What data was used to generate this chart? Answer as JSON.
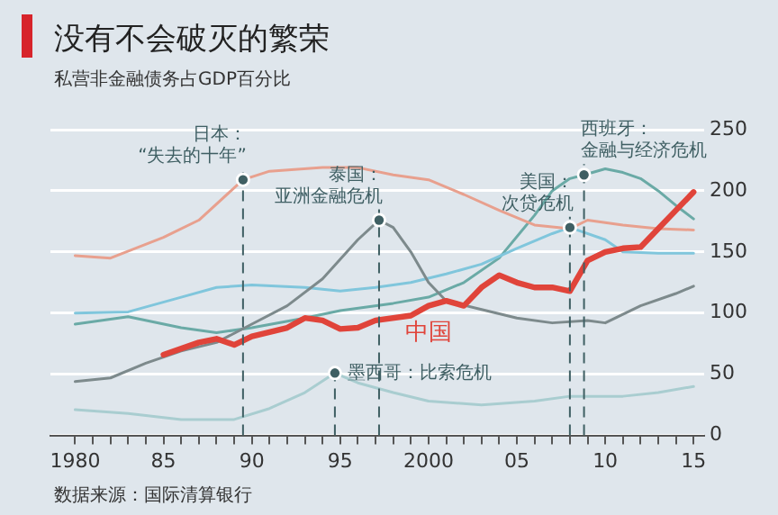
{
  "chart_data": {
    "type": "line",
    "title": "没有不会破灭的繁荣",
    "subtitle": "私营非金融债务占GDP百分比",
    "ref_lines": [
      {
        "axis": "x",
        "value": 1989.5,
        "line_style": "dashed"
      },
      {
        "axis": "x",
        "value": 1994.7,
        "line_style": "dashed"
      },
      {
        "axis": "x",
        "value": 1997.2,
        "line_style": "dashed"
      },
      {
        "axis": "x",
        "value": 2008,
        "line_style": "dashed"
      },
      {
        "axis": "x",
        "value": 2008.8,
        "line_style": "dashed"
      }
    ],
    "annotations": [
      {
        "text": "日本：“失去的十年”",
        "x": 1989.5,
        "y": 209
      },
      {
        "text": "墨西哥：比索危机",
        "x": 1994.7,
        "y": 51
      },
      {
        "text": "泰国：亚洲金融危机",
        "x": 1997.2,
        "y": 176
      },
      {
        "text": "美国：次贷危机",
        "x": 2008,
        "y": 170
      },
      {
        "text": "西班牙：金融与经济危机",
        "x": 2008.8,
        "y": 213
      },
      "数据来源：国际清算银行"
    ],
    "series": [
      {
        "color": "#e8a08e",
        "x": [
          1980,
          1982,
          1985,
          1987,
          1989.5,
          1991,
          1994,
          1996,
          1998,
          2000,
          2002,
          2004,
          2006,
          2008,
          2009,
          2011,
          2013,
          2015
        ],
        "values": [
          147,
          145,
          162,
          176,
          209,
          216,
          219,
          219,
          213,
          209,
          197,
          184,
          172,
          169,
          176,
          172,
          169,
          168
        ]
      },
      {
        "color": "#7d8a8c",
        "x": [
          1980,
          1982,
          1984,
          1986,
          1988,
          1990,
          1992,
          1994,
          1996,
          1997.2,
          1998,
          1999,
          2000,
          2001,
          2003,
          2005,
          2007,
          2009,
          2010,
          2012,
          2014,
          2015
        ],
        "values": [
          44,
          47,
          59,
          69,
          76,
          91,
          106,
          128,
          160,
          176,
          170,
          150,
          125,
          110,
          103,
          96,
          92,
          94,
          92,
          106,
          116,
          122
        ]
      },
      {
        "color": "#80c6dc",
        "x": [
          1980,
          1983,
          1986,
          1988,
          1990,
          1993,
          1995,
          1997,
          1999,
          2001,
          2003,
          2005,
          2007,
          2008,
          2010,
          2011,
          2013,
          2015
        ],
        "values": [
          100,
          101,
          113,
          121,
          123,
          121,
          118,
          121,
          125,
          132,
          140,
          153,
          165,
          170,
          160,
          150,
          149,
          149
        ]
      },
      {
        "color": "#6aaaa6",
        "x": [
          1980,
          1983,
          1986,
          1988,
          1990,
          1993,
          1995,
          1998,
          2000,
          2002,
          2004,
          2006,
          2007,
          2008,
          2008.8,
          2010,
          2011,
          2012,
          2013,
          2014,
          2015
        ],
        "values": [
          91,
          97,
          88,
          84,
          88,
          96,
          102,
          108,
          113,
          125,
          145,
          180,
          200,
          210,
          213,
          218,
          215,
          210,
          200,
          188,
          177
        ]
      },
      {
        "color": "#a9cdd0",
        "x": [
          1980,
          1983,
          1986,
          1989,
          1991,
          1993,
          1994.7,
          1996,
          1998,
          2000,
          2003,
          2006,
          2008,
          2011,
          2013,
          2015
        ],
        "values": [
          21,
          18,
          13,
          13,
          22,
          35,
          51,
          43,
          35,
          28,
          25,
          28,
          32,
          32,
          35,
          40
        ]
      },
      {
        "name": "中国",
        "color": "#e0443a",
        "x": [
          1985,
          1987,
          1988,
          1989,
          1990,
          1992,
          1993,
          1994,
          1995,
          1996,
          1997,
          1999,
          2000,
          2001,
          2002,
          2003,
          2004,
          2005,
          2006,
          2007,
          2008,
          2009,
          2010,
          2011,
          2012,
          2013,
          2014,
          2015
        ],
        "values": [
          66,
          76,
          79,
          74,
          81,
          88,
          96,
          94,
          87,
          88,
          94,
          98,
          106,
          110,
          106,
          121,
          131,
          125,
          121,
          121,
          118,
          143,
          150,
          153,
          154,
          169,
          184,
          199
        ]
      }
    ],
    "xlim": [
      1978.6,
      2015.6
    ],
    "xticks": [
      {
        "value": 1980,
        "label": "1980"
      },
      {
        "value": 1981,
        "label": null
      },
      {
        "value": 1982,
        "label": null
      },
      {
        "value": 1983,
        "label": null
      },
      {
        "value": 1984,
        "label": null
      },
      {
        "value": 1985,
        "label": "85"
      },
      {
        "value": 1986,
        "label": null
      },
      {
        "value": 1987,
        "label": null
      },
      {
        "value": 1988,
        "label": null
      },
      {
        "value": 1989,
        "label": null
      },
      {
        "value": 1990,
        "label": "90"
      },
      {
        "value": 1991,
        "label": null
      },
      {
        "value": 1992,
        "label": null
      },
      {
        "value": 1993,
        "label": null
      },
      {
        "value": 1994,
        "label": null
      },
      {
        "value": 1995,
        "label": "95"
      },
      {
        "value": 1996,
        "label": null
      },
      {
        "value": 1997,
        "label": null
      },
      {
        "value": 1998,
        "label": null
      },
      {
        "value": 1999,
        "label": null
      },
      {
        "value": 2000,
        "label": "2000"
      },
      {
        "value": 2001,
        "label": null
      },
      {
        "value": 2002,
        "label": null
      },
      {
        "value": 2003,
        "label": null
      },
      {
        "value": 2004,
        "label": null
      },
      {
        "value": 2005,
        "label": "05"
      },
      {
        "value": 2006,
        "label": null
      },
      {
        "value": 2007,
        "label": null
      },
      {
        "value": 2008,
        "label": null
      },
      {
        "value": 2009,
        "label": null
      },
      {
        "value": 2010,
        "label": "10"
      },
      {
        "value": 2011,
        "label": null
      },
      {
        "value": 2012,
        "label": null
      },
      {
        "value": 2013,
        "label": null
      },
      {
        "value": 2014,
        "label": null
      },
      {
        "value": 2015,
        "label": "15"
      }
    ],
    "ylim": [
      0,
      250
    ],
    "yticks": [
      0,
      50,
      100,
      150,
      200,
      250
    ],
    "grid": "y",
    "legend": false,
    "marker": "none",
    "line_style": "solid"
  }
}
